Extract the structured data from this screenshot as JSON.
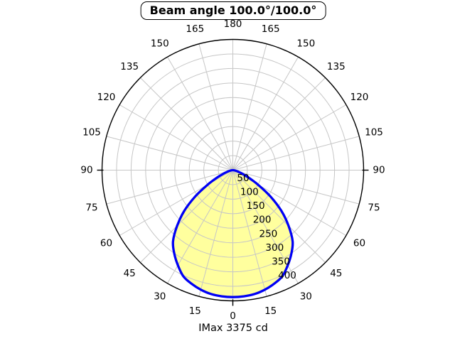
{
  "window": {
    "background": "#ffffff"
  },
  "chart": {
    "title": "Beam angle 100.0°/100.0°",
    "footer": "IMax 3375 cd"
  },
  "chart_data": {
    "type": "area",
    "subtype": "polar-intensity-distribution",
    "title": "Beam angle 100.0°/100.0°",
    "annotation": "IMax 3375 cd",
    "imax_cd": 3375,
    "beam_angle_deg": "100.0/100.0",
    "symmetric": true,
    "angles_deg": [
      0,
      5,
      10,
      15,
      20,
      25,
      30,
      35,
      40,
      45,
      50,
      55,
      60,
      65,
      70,
      75,
      80,
      85,
      90
    ],
    "intensity_values": [
      437,
      436,
      433,
      426,
      416,
      403,
      378,
      351,
      320,
      271,
      218,
      158,
      100,
      58,
      32,
      17,
      8,
      3,
      0
    ],
    "r_axis": {
      "max": 450,
      "ticks": [
        50,
        100,
        150,
        200,
        250,
        300,
        350,
        400
      ],
      "grid_step": 50
    },
    "theta_axis": {
      "ticks": [
        0,
        15,
        30,
        45,
        60,
        75,
        90,
        105,
        120,
        135,
        150,
        165,
        180
      ],
      "mirrored": true,
      "grid_step_deg": 15,
      "zero_position": "bottom"
    },
    "legend": null,
    "colors": {
      "fill": "#FFFF9E",
      "curve": "#0000F5",
      "grid": "#c6c6c6",
      "outer_ring": "#000000",
      "text": "#000000",
      "background": "#ffffff"
    }
  }
}
